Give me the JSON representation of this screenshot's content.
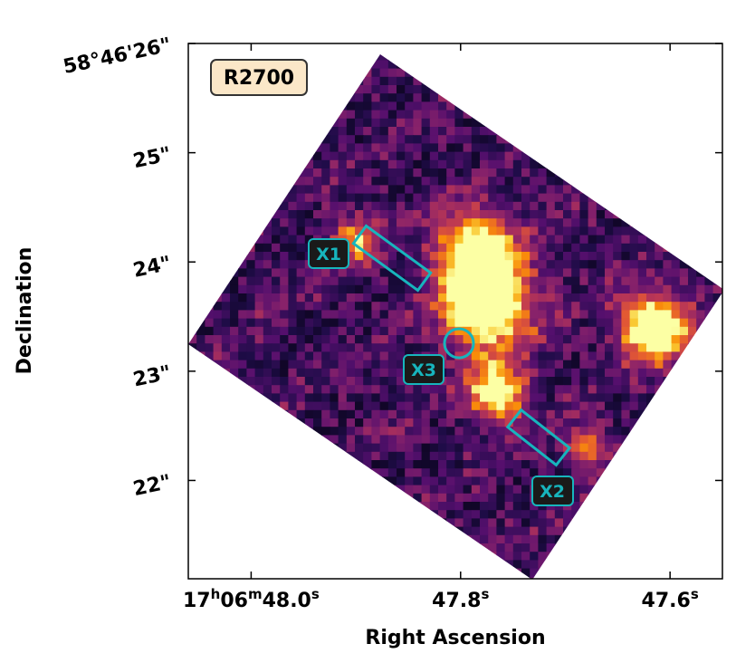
{
  "chart_data": {
    "type": "heatmap",
    "title": "",
    "panel_label": "R2700",
    "xlabel": "Right Ascension",
    "ylabel": "Declination",
    "colormap": "inferno",
    "colors": {
      "region": "#17b5bd",
      "label_box_fill": "#fbe7c8",
      "label_box_edge": "#333333",
      "background": "#000004",
      "axes": "#000000"
    },
    "x_axis": {
      "unit": "RA (seconds of time, 17h06m)",
      "range": [
        48.06,
        47.55
      ],
      "ticks": [
        {
          "value": 48.0,
          "label_h": "17",
          "label_m": "06",
          "label_s": "48.0"
        },
        {
          "value": 47.8,
          "label_s": "47.8"
        },
        {
          "value": 47.6,
          "label_s": "47.6"
        }
      ]
    },
    "y_axis": {
      "unit": "Dec (arcsec, 58°46')",
      "range": [
        21.1,
        26.0
      ],
      "ticks": [
        {
          "value": 26,
          "label": "58°46'26\""
        },
        {
          "value": 25,
          "label": "25\""
        },
        {
          "value": 24,
          "label": "24\""
        },
        {
          "value": 23,
          "label": "23\""
        },
        {
          "value": 22,
          "label": "22\""
        }
      ]
    },
    "regions": [
      {
        "name": "X1",
        "shape": "box",
        "label": "X1"
      },
      {
        "name": "X2",
        "shape": "box",
        "label": "X2"
      },
      {
        "name": "X3",
        "shape": "circle",
        "label": "X3"
      }
    ],
    "emission_peaks": [
      {
        "ra": 47.775,
        "dec": 23.6,
        "intensity": 1.0
      },
      {
        "ra": 47.785,
        "dec": 24.1,
        "intensity": 0.9
      },
      {
        "ra": 47.615,
        "dec": 23.4,
        "intensity": 1.0
      },
      {
        "ra": 47.765,
        "dec": 22.8,
        "intensity": 0.85
      },
      {
        "ra": 47.68,
        "dec": 22.3,
        "intensity": 0.6
      },
      {
        "ra": 47.9,
        "dec": 24.2,
        "intensity": 0.55
      }
    ]
  }
}
